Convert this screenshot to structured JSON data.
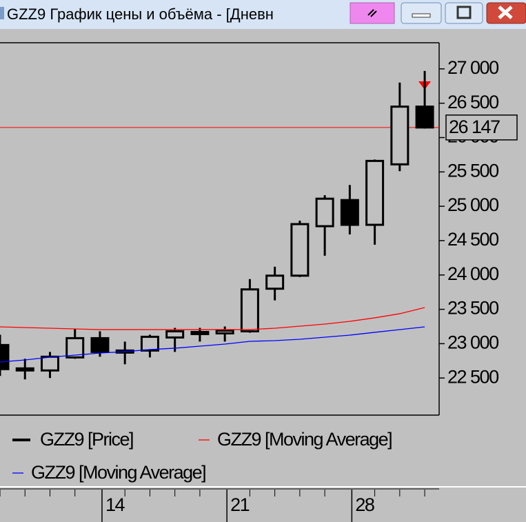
{
  "window": {
    "title": "GZZ9 График цены и объёма - [Дневн"
  },
  "chart_data": {
    "type": "candlestick",
    "categories": [
      null,
      null,
      null,
      null,
      "14",
      null,
      null,
      null,
      null,
      "21",
      null,
      null,
      null,
      null,
      "28",
      null,
      null,
      null
    ],
    "series": [
      {
        "name": "GZZ9 [Price]",
        "color": "#000000",
        "open": [
          22980,
          22630,
          22610,
          22800,
          23080,
          22890,
          22900,
          23090,
          23140,
          23150,
          23180,
          23800,
          23990,
          24710,
          25090,
          24730,
          25610,
          26450
        ],
        "high": [
          23130,
          22780,
          22880,
          23210,
          23180,
          23030,
          23130,
          23230,
          23230,
          23250,
          23940,
          24120,
          24790,
          25160,
          25310,
          25680,
          26800,
          26970
        ],
        "low": [
          22530,
          22480,
          22500,
          22780,
          22810,
          22700,
          22800,
          22880,
          23030,
          23030,
          23160,
          23630,
          23970,
          24280,
          24590,
          24440,
          25510,
          26130
        ],
        "close": [
          22630,
          22640,
          22810,
          23080,
          22880,
          22900,
          23100,
          23180,
          23170,
          23190,
          23790,
          23990,
          24740,
          25110,
          24730,
          25660,
          26450,
          26147
        ]
      },
      {
        "name": "GZZ9 [Moving Average]",
        "type": "line",
        "color": "#ff0000",
        "values": [
          23245,
          23235,
          23225,
          23215,
          23205,
          23205,
          23205,
          23205,
          23205,
          23205,
          23205,
          23225,
          23255,
          23285,
          23325,
          23376,
          23436,
          23526
        ]
      },
      {
        "name": "GZZ9 [Moving Average]",
        "type": "line",
        "color": "#0000ff",
        "values": [
          22733,
          22763,
          22803,
          22833,
          22863,
          22884,
          22914,
          22934,
          22964,
          22994,
          23034,
          23044,
          23064,
          23094,
          23124,
          23165,
          23205,
          23245
        ]
      }
    ],
    "current_price": {
      "value": 26147,
      "label": "26 147"
    },
    "ylim": [
      21960,
      27380
    ],
    "yticks": [
      {
        "value": 22500,
        "label": "22 500"
      },
      {
        "value": 23000,
        "label": "23 000"
      },
      {
        "value": 23500,
        "label": "23 500"
      },
      {
        "value": 24000,
        "label": "24 000"
      },
      {
        "value": 24500,
        "label": "24 500"
      },
      {
        "value": 25000,
        "label": "25 000"
      },
      {
        "value": 25500,
        "label": "25 500"
      },
      {
        "value": 26000,
        "label": "26 000"
      },
      {
        "value": 26500,
        "label": "26 500"
      },
      {
        "value": 27000,
        "label": "27 000"
      }
    ]
  }
}
